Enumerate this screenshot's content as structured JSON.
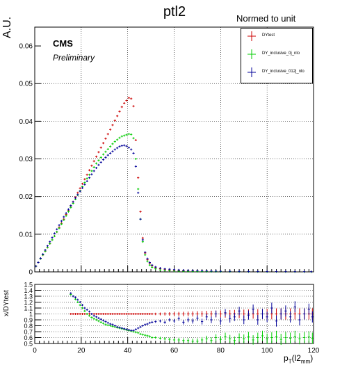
{
  "title": "ptl2",
  "legend": {
    "header": "Normed to unit",
    "entries": [
      {
        "label": "DYtest",
        "color": "#cc0000"
      },
      {
        "label": "DY_inclusive_0j_nlo",
        "color": "#00cc00"
      },
      {
        "label": "DY_inclusive_012j_nlo",
        "color": "#000099"
      }
    ]
  },
  "cms_label": "CMS",
  "preliminary_label": "Preliminary",
  "chart_data": [
    {
      "type": "scatter",
      "title": "ptl2",
      "ylabel": "A.U.",
      "xlim": [
        0,
        120
      ],
      "ylim": [
        0,
        0.065
      ],
      "yticks": [
        0,
        0.01,
        0.02,
        0.03,
        0.04,
        0.05,
        0.06
      ],
      "ytick_labels": [
        "0",
        "0.01",
        "0.02",
        "0.03",
        "0.04",
        "0.05",
        "0.06"
      ],
      "grid": true,
      "legend_position": "top-right",
      "x": [
        0.5,
        1.5,
        2.5,
        3.5,
        4.5,
        5.5,
        6.5,
        7.5,
        8.5,
        9.5,
        10.5,
        11.5,
        12.5,
        13.5,
        14.5,
        15.5,
        16.5,
        17.5,
        18.5,
        19.5,
        20.5,
        21.5,
        22.5,
        23.5,
        24.5,
        25.5,
        26.5,
        27.5,
        28.5,
        29.5,
        30.5,
        31.5,
        32.5,
        33.5,
        34.5,
        35.5,
        36.5,
        37.5,
        38.5,
        39.5,
        40.5,
        41.5,
        42.5,
        43.5,
        44.5,
        45.5,
        46.5,
        47.5,
        48.5,
        49.5,
        50.5,
        52,
        54,
        56,
        58,
        60,
        62,
        64,
        66,
        68,
        70,
        72,
        74,
        76,
        78,
        80,
        84,
        88,
        92,
        96,
        100,
        104,
        108,
        112,
        116,
        119
      ],
      "series": [
        {
          "name": "DYtest",
          "color": "#cc0000",
          "values": [
            0.0015,
            0.0025,
            0.0035,
            0.0045,
            0.0055,
            0.0065,
            0.0075,
            0.0085,
            0.0095,
            0.0106,
            0.0118,
            0.0129,
            0.014,
            0.0152,
            0.0163,
            0.0175,
            0.0186,
            0.0198,
            0.021,
            0.0222,
            0.0234,
            0.0246,
            0.0258,
            0.027,
            0.0282,
            0.0294,
            0.0306,
            0.0318,
            0.033,
            0.0342,
            0.0354,
            0.0366,
            0.0378,
            0.039,
            0.0402,
            0.0414,
            0.0426,
            0.0438,
            0.0448,
            0.0455,
            0.0462,
            0.046,
            0.044,
            0.035,
            0.025,
            0.016,
            0.009,
            0.005,
            0.0032,
            0.0022,
            0.0016,
            0.0011,
            0.0008,
            0.0006,
            0.0005,
            0.0004,
            0.00035,
            0.0003,
            0.00025,
            0.00022,
            0.0002,
            0.00018,
            0.00016,
            0.00014,
            0.00012,
            0.0001,
            9e-05,
            8e-05,
            7e-05,
            6e-05,
            5e-05,
            5e-05,
            4e-05,
            4e-05,
            3e-05,
            3e-05
          ]
        },
        {
          "name": "DY_inclusive_0j_nlo",
          "color": "#00cc00",
          "values": [
            0.0015,
            0.0025,
            0.0035,
            0.0045,
            0.0055,
            0.0065,
            0.0075,
            0.0085,
            0.0095,
            0.0106,
            0.0116,
            0.0127,
            0.0138,
            0.0149,
            0.016,
            0.0171,
            0.0182,
            0.0193,
            0.0204,
            0.0215,
            0.0226,
            0.0237,
            0.0248,
            0.0258,
            0.0268,
            0.0278,
            0.0288,
            0.0296,
            0.0304,
            0.0312,
            0.0319,
            0.0326,
            0.0333,
            0.034,
            0.0346,
            0.0351,
            0.0356,
            0.036,
            0.0362,
            0.0364,
            0.0366,
            0.0365,
            0.0355,
            0.03,
            0.022,
            0.014,
            0.008,
            0.0045,
            0.0028,
            0.0018,
            0.0012,
            0.0008,
            0.0005,
            0.0004,
            0.0003,
            0.00025,
            0.0002,
            0.00017,
            0.00014,
            0.00012,
            0.0001,
            9e-05,
            8e-05,
            7e-05,
            6e-05,
            5e-05,
            4e-05,
            4e-05,
            3e-05,
            3e-05,
            2e-05,
            2e-05,
            2e-05,
            2e-05,
            1e-05,
            1e-05
          ]
        },
        {
          "name": "DY_inclusive_012j_nlo",
          "color": "#000099",
          "values": [
            0.0015,
            0.0025,
            0.0036,
            0.0047,
            0.0058,
            0.0069,
            0.008,
            0.0091,
            0.0102,
            0.0113,
            0.0124,
            0.0135,
            0.0146,
            0.0156,
            0.0166,
            0.0176,
            0.0186,
            0.0196,
            0.0205,
            0.0214,
            0.0223,
            0.0232,
            0.0241,
            0.025,
            0.0259,
            0.0268,
            0.0276,
            0.0284,
            0.0291,
            0.0298,
            0.0304,
            0.031,
            0.0315,
            0.032,
            0.0325,
            0.0329,
            0.0333,
            0.0335,
            0.0336,
            0.0334,
            0.033,
            0.0325,
            0.0315,
            0.028,
            0.021,
            0.014,
            0.0085,
            0.0052,
            0.0035,
            0.0025,
            0.0018,
            0.0013,
            0.001,
            0.0008,
            0.0007,
            0.0006,
            0.0005,
            0.00045,
            0.0004,
            0.00035,
            0.0003,
            0.00027,
            0.00024,
            0.00021,
            0.00019,
            0.00017,
            0.00015,
            0.00013,
            0.00011,
            0.0001,
            9e-05,
            8e-05,
            7e-05,
            6e-05,
            5e-05,
            5e-05
          ]
        }
      ]
    },
    {
      "type": "scatter",
      "ylabel": "x/DYtest",
      "xlabel": "p_T(l2_mm)",
      "xlim": [
        0,
        120
      ],
      "ylim": [
        0.5,
        1.5
      ],
      "xticks": [
        0,
        20,
        40,
        60,
        80,
        100,
        120
      ],
      "xtick_labels": [
        "0",
        "20",
        "40",
        "60",
        "80",
        "100",
        "120"
      ],
      "yticks": [
        0.5,
        0.6,
        0.7,
        0.8,
        0.9,
        1,
        1.1,
        1.2,
        1.3,
        1.4,
        1.5
      ],
      "ytick_labels": [
        "0.5",
        "0.6",
        "0.7",
        "0.8",
        "0.9",
        "1",
        "1.1",
        "1.2",
        "1.3",
        "1.4",
        "1.5"
      ],
      "grid": true,
      "x": [
        15.5,
        16.5,
        17.5,
        18.5,
        19.5,
        20.5,
        21.5,
        22.5,
        23.5,
        24.5,
        25.5,
        26.5,
        27.5,
        28.5,
        29.5,
        30.5,
        31.5,
        32.5,
        33.5,
        34.5,
        35.5,
        36.5,
        37.5,
        38.5,
        39.5,
        40.5,
        41.5,
        42.5,
        43.5,
        44.5,
        45.5,
        46.5,
        47.5,
        48.5,
        49.5,
        50.5,
        52,
        54,
        56,
        58,
        60,
        62,
        64,
        66,
        68,
        70,
        72,
        74,
        76,
        78,
        80,
        82,
        84,
        86,
        88,
        90,
        92,
        94,
        96,
        98,
        100,
        102,
        104,
        106,
        108,
        110,
        112,
        114,
        116,
        118,
        119.5
      ],
      "series": [
        {
          "name": "DYtest",
          "color": "#cc0000",
          "values": [
            1,
            1,
            1,
            1,
            1,
            1,
            1,
            1,
            1,
            1,
            1,
            1,
            1,
            1,
            1,
            1,
            1,
            1,
            1,
            1,
            1,
            1,
            1,
            1,
            1,
            1,
            1,
            1,
            1,
            1,
            1,
            1,
            1,
            1,
            1,
            1,
            1,
            1,
            1,
            1,
            1,
            1,
            1,
            1,
            1,
            1,
            1,
            1,
            1,
            1,
            1,
            1,
            1,
            1,
            1,
            1,
            1,
            1,
            1,
            1,
            1,
            1,
            1,
            1,
            1,
            1,
            1,
            1,
            1,
            1,
            1
          ]
        },
        {
          "name": "DY_inclusive_0j_nlo",
          "color": "#00cc00",
          "values": [
            1.33,
            1.3,
            1.25,
            1.2,
            1.15,
            1.1,
            1.05,
            1.0,
            0.97,
            0.94,
            0.92,
            0.9,
            0.88,
            0.86,
            0.84,
            0.82,
            0.81,
            0.8,
            0.79,
            0.78,
            0.77,
            0.76,
            0.75,
            0.74,
            0.73,
            0.72,
            0.71,
            0.7,
            0.69,
            0.68,
            0.66,
            0.65,
            0.64,
            0.63,
            0.62,
            0.6,
            0.6,
            0.59,
            0.58,
            0.57,
            0.56,
            0.56,
            0.55,
            0.55,
            0.54,
            0.54,
            0.56,
            0.58,
            0.55,
            0.6,
            0.57,
            0.62,
            0.58,
            0.55,
            0.6,
            0.58,
            0.62,
            0.56,
            0.6,
            0.63,
            0.58,
            0.6,
            0.62,
            0.57,
            0.6,
            0.59,
            0.62,
            0.58,
            0.6,
            0.61,
            0.59
          ]
        },
        {
          "name": "DY_inclusive_012j_nlo",
          "color": "#000099",
          "values": [
            1.35,
            1.3,
            1.28,
            1.24,
            1.2,
            1.15,
            1.1,
            1.07,
            1.04,
            1.0,
            0.97,
            0.95,
            0.93,
            0.91,
            0.89,
            0.87,
            0.85,
            0.83,
            0.82,
            0.8,
            0.78,
            0.77,
            0.76,
            0.75,
            0.74,
            0.73,
            0.72,
            0.72,
            0.74,
            0.76,
            0.78,
            0.8,
            0.82,
            0.83,
            0.85,
            0.86,
            0.87,
            0.88,
            0.86,
            0.9,
            0.88,
            0.92,
            0.86,
            0.9,
            0.88,
            0.93,
            0.87,
            0.95,
            0.9,
            1.0,
            0.88,
            1.02,
            0.92,
            0.95,
            1.05,
            0.9,
            0.98,
            1.08,
            0.9,
            1.0,
            0.95,
            1.1,
            0.88,
            1.0,
            1.05,
            0.95,
            1.12,
            0.9,
            1.0,
            1.08,
            0.95
          ]
        }
      ]
    }
  ]
}
